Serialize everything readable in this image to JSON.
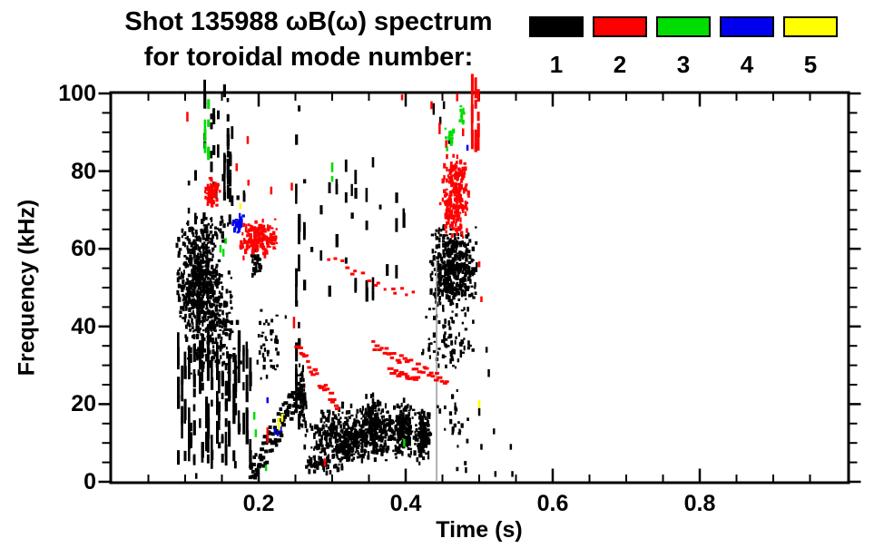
{
  "figure": {
    "title_line1": "Shot 135988 ωB(ω) spectrum",
    "title_line2": "for toroidal mode number:"
  },
  "chart_data": {
    "type": "scatter",
    "title": "Shot 135988 ωB(ω) spectrum for toroidal mode number: 1 2 3 4 5",
    "xlabel": "Time (s)",
    "ylabel": "Frequency (kHz)",
    "xlim": [
      0,
      1.0
    ],
    "ylim": [
      0,
      100
    ],
    "grid": false,
    "x_minor_step": 0.05,
    "y_minor_step": 5,
    "xticks": [
      {
        "v": 0.2,
        "label": "0.2"
      },
      {
        "v": 0.4,
        "label": "0.4"
      },
      {
        "v": 0.6,
        "label": "0.6"
      },
      {
        "v": 0.8,
        "label": "0.8"
      }
    ],
    "yticks": [
      {
        "v": 0,
        "label": "0"
      },
      {
        "v": 20,
        "label": "20"
      },
      {
        "v": 40,
        "label": "40"
      },
      {
        "v": 60,
        "label": "60"
      },
      {
        "v": 80,
        "label": "80"
      },
      {
        "v": 100,
        "label": "100"
      }
    ],
    "legend": [
      {
        "mode": 1,
        "label": "1",
        "color": "#000000"
      },
      {
        "mode": 2,
        "label": "2",
        "color": "#ff0000"
      },
      {
        "mode": 3,
        "label": "3",
        "color": "#00dd00"
      },
      {
        "mode": 4,
        "label": "4",
        "color": "#0000ee"
      },
      {
        "mode": 5,
        "label": "5",
        "color": "#ffff00"
      }
    ],
    "clusters": [
      {
        "mode": 1,
        "type": "blob",
        "t": [
          0.085,
          0.148
        ],
        "f": [
          38,
          66
        ],
        "n": 500
      },
      {
        "mode": 1,
        "type": "blob",
        "t": [
          0.095,
          0.175
        ],
        "f": [
          26,
          56
        ],
        "n": 260
      },
      {
        "mode": 1,
        "type": "blob",
        "t": [
          0.088,
          0.16
        ],
        "f": [
          60,
          69
        ],
        "n": 70
      },
      {
        "mode": 1,
        "type": "vstreaks",
        "t": [
          0.088,
          0.19
        ],
        "f": [
          3,
          34
        ],
        "cols": 22,
        "segs": [
          3,
          9
        ],
        "len": [
          1.5,
          6
        ]
      },
      {
        "mode": 1,
        "type": "vstreaks",
        "t": [
          0.125,
          0.165
        ],
        "f": [
          68,
          100
        ],
        "cols": 7,
        "segs": [
          2,
          6
        ],
        "len": [
          1,
          4
        ]
      },
      {
        "mode": 1,
        "type": "vstreaks",
        "t": [
          0.152,
          0.163
        ],
        "f": [
          71,
          86
        ],
        "cols": 3,
        "segs": [
          5,
          8
        ],
        "len": [
          1.5,
          4
        ]
      },
      {
        "mode": 1,
        "type": "vstreaks",
        "t": [
          0.1,
          0.185
        ],
        "f": [
          66,
          78
        ],
        "cols": 8,
        "segs": [
          1,
          3
        ],
        "len": [
          1,
          3
        ]
      },
      {
        "mode": 1,
        "type": "vstreaks",
        "t": [
          0.248,
          0.256
        ],
        "f": [
          12,
          97
        ],
        "cols": 2,
        "segs": [
          10,
          14
        ],
        "len": [
          1.5,
          5
        ]
      },
      {
        "mode": 1,
        "type": "vstreaks",
        "t": [
          0.258,
          0.4
        ],
        "f": [
          44,
          82
        ],
        "cols": 14,
        "segs": [
          1,
          4
        ],
        "len": [
          1,
          4
        ]
      },
      {
        "mode": 1,
        "type": "blob",
        "t": [
          0.19,
          0.236
        ],
        "f": [
          24,
          46
        ],
        "n": 40
      },
      {
        "mode": 1,
        "type": "blob",
        "t": [
          0.188,
          0.202
        ],
        "f": [
          53,
          62
        ],
        "n": 35
      },
      {
        "mode": 1,
        "type": "chirp",
        "from": [
          0.188,
          2
        ],
        "to": [
          0.253,
          22
        ],
        "n": 90,
        "fj": 4,
        "w": 3,
        "h": 4
      },
      {
        "mode": 1,
        "type": "blob",
        "t": [
          0.255,
          0.43
        ],
        "f": [
          5,
          21
        ],
        "n": 550
      },
      {
        "mode": 1,
        "type": "blob",
        "t": [
          0.25,
          0.263
        ],
        "f": [
          13,
          32
        ],
        "n": 70
      },
      {
        "mode": 1,
        "type": "blob",
        "t": [
          0.34,
          0.372
        ],
        "f": [
          7,
          24
        ],
        "n": 130
      },
      {
        "mode": 1,
        "type": "blob",
        "t": [
          0.383,
          0.408
        ],
        "f": [
          7,
          22
        ],
        "n": 110
      },
      {
        "mode": 1,
        "type": "blob",
        "t": [
          0.413,
          0.433
        ],
        "f": [
          5,
          20
        ],
        "n": 110
      },
      {
        "mode": 1,
        "type": "blob",
        "t": [
          0.298,
          0.335
        ],
        "f": [
          5,
          15
        ],
        "n": 90
      },
      {
        "mode": 1,
        "type": "blob",
        "t": [
          0.26,
          0.315
        ],
        "f": [
          2,
          8
        ],
        "n": 50
      },
      {
        "mode": 1,
        "type": "blob",
        "t": [
          0.428,
          0.497
        ],
        "f": [
          44,
          67
        ],
        "n": 420
      },
      {
        "mode": 1,
        "type": "blob",
        "t": [
          0.415,
          0.5
        ],
        "f": [
          28,
          47
        ],
        "n": 80
      },
      {
        "mode": 1,
        "type": "vline",
        "t": 0.442,
        "f": [
          0,
          57
        ],
        "w": 1.5,
        "color": "#999999"
      },
      {
        "mode": 1,
        "type": "blob",
        "t": [
          0.438,
          0.49
        ],
        "f": [
          2,
          26
        ],
        "n": 28
      },
      {
        "mode": 1,
        "type": "specks",
        "pts": [
          [
            0.438,
            96,
            3
          ],
          [
            0.447,
            93,
            2
          ],
          [
            0.452,
            97,
            2
          ],
          [
            0.459,
            88,
            2
          ],
          [
            0.5,
            18,
            2
          ],
          [
            0.513,
            28,
            2
          ],
          [
            0.52,
            13,
            1.5
          ],
          [
            0.503,
            9,
            1.5
          ],
          [
            0.543,
            9,
            1.5
          ],
          [
            0.482,
            3,
            1.5
          ],
          [
            0.522,
            2,
            1.5
          ],
          [
            0.545,
            2,
            1.5
          ],
          [
            0.475,
            33,
            2
          ],
          [
            0.51,
            34,
            1.5
          ],
          [
            0.115,
            1.5,
            1.5
          ],
          [
            0.195,
            1.5,
            1.5
          ]
        ]
      },
      {
        "mode": 2,
        "type": "specks",
        "pts": [
          [
            0.103,
            94,
            2.5
          ],
          [
            0.185,
            88,
            2
          ],
          [
            0.17,
            81,
            2
          ],
          [
            0.186,
            77,
            1.5
          ],
          [
            0.217,
            75,
            2
          ],
          [
            0.245,
            76,
            2
          ],
          [
            0.248,
            41,
            3
          ],
          [
            0.212,
            12,
            4
          ],
          [
            0.29,
            5,
            2
          ],
          [
            0.5,
            56,
            1.5
          ],
          [
            0.503,
            47,
            1.5
          ],
          [
            0.395,
            99,
            1.5
          ],
          [
            0.435,
            97,
            2
          ]
        ]
      },
      {
        "mode": 2,
        "type": "blob",
        "t": [
          0.124,
          0.146
        ],
        "f": [
          71,
          79
        ],
        "n": 70
      },
      {
        "mode": 2,
        "type": "blob",
        "t": [
          0.17,
          0.227
        ],
        "f": [
          58,
          68
        ],
        "n": 170
      },
      {
        "mode": 2,
        "type": "chirp",
        "from": [
          0.251,
          35
        ],
        "to": [
          0.307,
          19
        ],
        "n": 26,
        "fj": 1.5,
        "w": 4,
        "h": 3
      },
      {
        "mode": 2,
        "type": "chirp",
        "from": [
          0.355,
          35
        ],
        "to": [
          0.455,
          26
        ],
        "n": 34,
        "fj": 1.2,
        "w": 4,
        "h": 3
      },
      {
        "mode": 2,
        "type": "chirp",
        "from": [
          0.378,
          28.5
        ],
        "to": [
          0.415,
          26.5
        ],
        "n": 14,
        "fj": 0.8,
        "w": 5,
        "h": 3
      },
      {
        "mode": 2,
        "type": "chirp",
        "from": [
          0.295,
          57
        ],
        "to": [
          0.41,
          48
        ],
        "n": 16,
        "fj": 1.5,
        "w": 3,
        "h": 3
      },
      {
        "mode": 2,
        "type": "blob",
        "t": [
          0.444,
          0.487
        ],
        "f": [
          63,
          85
        ],
        "n": 230
      },
      {
        "mode": 2,
        "type": "vstreaks",
        "t": [
          0.486,
          0.5
        ],
        "f": [
          84,
          100
        ],
        "cols": 3,
        "segs": [
          4,
          7
        ],
        "len": [
          2,
          6
        ]
      },
      {
        "mode": 2,
        "type": "specks",
        "pts": [
          [
            0.446,
            91,
            3
          ],
          [
            0.455,
            87,
            2
          ],
          [
            0.47,
            99,
            2
          ],
          [
            0.478,
            90,
            2
          ]
        ]
      },
      {
        "mode": 3,
        "type": "vstreaks",
        "t": [
          0.125,
          0.132
        ],
        "f": [
          82,
          96
        ],
        "cols": 2,
        "segs": [
          3,
          5
        ],
        "len": [
          1.5,
          4
        ]
      },
      {
        "mode": 3,
        "type": "specks",
        "pts": [
          [
            0.148,
            60,
            2
          ],
          [
            0.152,
            59,
            2
          ],
          [
            0.155,
            62,
            1.5
          ],
          [
            0.3,
            81,
            2.5
          ],
          [
            0.3,
            78,
            1.5
          ],
          [
            0.194,
            17,
            2
          ],
          [
            0.196,
            12.5,
            2
          ],
          [
            0.398,
            10,
            2
          ],
          [
            0.21,
            3.5,
            1.5
          ]
        ]
      },
      {
        "mode": 3,
        "type": "blob",
        "t": [
          0.452,
          0.465
        ],
        "f": [
          86,
          92
        ],
        "n": 14
      },
      {
        "mode": 3,
        "type": "blob",
        "t": [
          0.47,
          0.479
        ],
        "f": [
          91,
          98
        ],
        "n": 10
      },
      {
        "mode": 4,
        "type": "blob",
        "t": [
          0.162,
          0.18
        ],
        "f": [
          64,
          70
        ],
        "n": 30
      },
      {
        "mode": 4,
        "type": "specks",
        "pts": [
          [
            0.222,
            13,
            1.5
          ],
          [
            0.226,
            12.5,
            1.5
          ],
          [
            0.23,
            13.5,
            1.5
          ],
          [
            0.212,
            21,
            1.5
          ],
          [
            0.484,
            86,
            1.5
          ]
        ]
      },
      {
        "mode": 5,
        "type": "specks",
        "pts": [
          [
            0.227,
            15.5,
            2
          ],
          [
            0.232,
            16.5,
            2
          ],
          [
            0.228,
            14,
            1.5
          ],
          [
            0.175,
            71,
            1.5
          ],
          [
            0.5,
            20,
            2
          ]
        ]
      }
    ]
  }
}
